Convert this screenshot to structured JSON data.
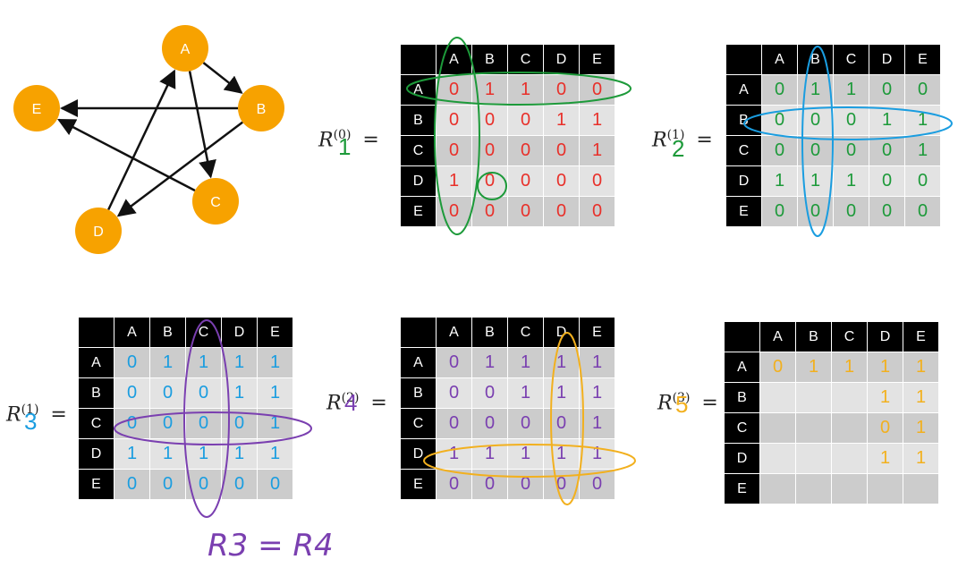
{
  "graph": {
    "node_color": "#f7a200",
    "nodes": [
      {
        "id": "A",
        "label": "A"
      },
      {
        "id": "B",
        "label": "B"
      },
      {
        "id": "C",
        "label": "C"
      },
      {
        "id": "D",
        "label": "D"
      },
      {
        "id": "E",
        "label": "E"
      }
    ],
    "edges": [
      {
        "from": "A",
        "to": "B"
      },
      {
        "from": "A",
        "to": "C"
      },
      {
        "from": "B",
        "to": "E"
      },
      {
        "from": "B",
        "to": "D"
      },
      {
        "from": "C",
        "to": "E"
      },
      {
        "from": "D",
        "to": "A"
      }
    ]
  },
  "headers": [
    "A",
    "B",
    "C",
    "D",
    "E"
  ],
  "matrices": [
    {
      "id": "m0",
      "color": "#e8302a",
      "symbol": "R",
      "superscript": "(0)",
      "index": "1",
      "index_color": "#1d9a3a",
      "op": "=",
      "rows": [
        [
          "0",
          "1",
          "1",
          "0",
          "0"
        ],
        [
          "0",
          "0",
          "0",
          "1",
          "1"
        ],
        [
          "0",
          "0",
          "0",
          "0",
          "1"
        ],
        [
          "1",
          "0",
          "0",
          "0",
          "0"
        ],
        [
          "0",
          "0",
          "0",
          "0",
          "0"
        ]
      ]
    },
    {
      "id": "m1",
      "color": "#1d9a3a",
      "symbol": "R",
      "superscript": "(1)",
      "index": "2",
      "index_color": "#1d9a3a",
      "op": "=",
      "rows": [
        [
          "0",
          "1",
          "1",
          "0",
          "0"
        ],
        [
          "0",
          "0",
          "0",
          "1",
          "1"
        ],
        [
          "0",
          "0",
          "0",
          "0",
          "1"
        ],
        [
          "1",
          "1",
          "1",
          "0",
          "0"
        ],
        [
          "0",
          "0",
          "0",
          "0",
          "0"
        ]
      ]
    },
    {
      "id": "m2",
      "color": "#1a9de0",
      "symbol": "R",
      "superscript": "(1)",
      "index": "3",
      "index_color": "#1a9de0",
      "op": "=",
      "rows": [
        [
          "0",
          "1",
          "1",
          "1",
          "1"
        ],
        [
          "0",
          "0",
          "0",
          "1",
          "1"
        ],
        [
          "0",
          "0",
          "0",
          "0",
          "1"
        ],
        [
          "1",
          "1",
          "1",
          "1",
          "1"
        ],
        [
          "0",
          "0",
          "0",
          "0",
          "0"
        ]
      ]
    },
    {
      "id": "m3",
      "color": "#7a3fb0",
      "symbol": "R",
      "superscript": "(2)",
      "index": "4",
      "index_color": "#7a3fb0",
      "op": "=",
      "rows": [
        [
          "0",
          "1",
          "1",
          "1",
          "1"
        ],
        [
          "0",
          "0",
          "1",
          "1",
          "1"
        ],
        [
          "0",
          "0",
          "0",
          "0",
          "1"
        ],
        [
          "1",
          "1",
          "1",
          "1",
          "1"
        ],
        [
          "0",
          "0",
          "0",
          "0",
          "0"
        ]
      ]
    },
    {
      "id": "m4",
      "color": "#f2b01e",
      "symbol": "R",
      "superscript": "(3)",
      "index": "5",
      "index_color": "#f2b01e",
      "op": "=",
      "rows": [
        [
          "0",
          "1",
          "1",
          "1",
          "1"
        ],
        [
          "",
          "",
          "",
          "1",
          "1"
        ],
        [
          "",
          "",
          "",
          "0",
          "1"
        ],
        [
          "",
          "",
          "",
          "1",
          "1"
        ],
        [
          "",
          "",
          "",
          "",
          ""
        ]
      ]
    }
  ],
  "note": {
    "text": "R3 = R4",
    "color": "#7a3fb0"
  }
}
